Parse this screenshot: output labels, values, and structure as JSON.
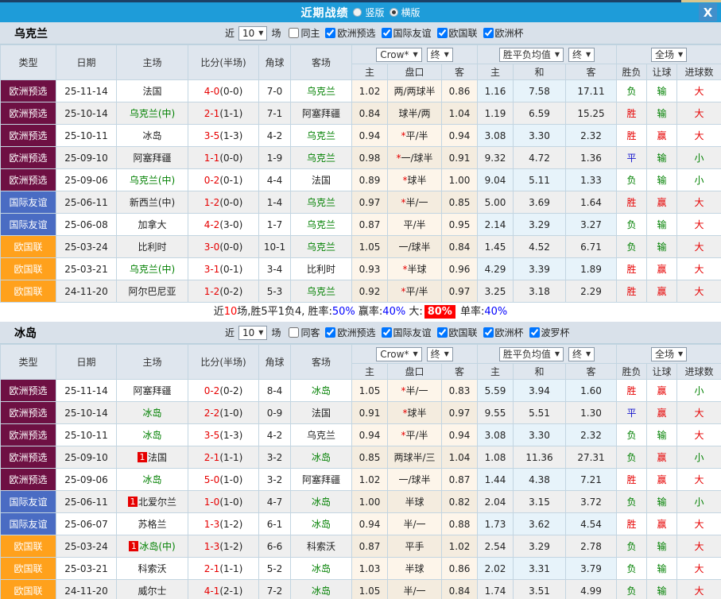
{
  "titlebar": {
    "title": "近期战绩",
    "radios": [
      {
        "label": "竖版",
        "selected": false
      },
      {
        "label": "横版",
        "selected": true
      }
    ],
    "close_label": "X"
  },
  "table_header": {
    "static_cols": [
      "类型",
      "日期",
      "主场",
      "比分(半场)",
      "角球",
      "客场"
    ],
    "group1_select": "Crow*",
    "group1_final": "终",
    "group2_select": "胜平负均值",
    "group2_final": "终",
    "group3_select": "全场",
    "sub_cols": [
      "主",
      "盘口",
      "客",
      "主",
      "和",
      "客",
      "胜负",
      "让球",
      "进球数"
    ]
  },
  "colors": {
    "accent_blue": "#1e9cd9",
    "type_euro_qualifier": "#6e1043",
    "type_friendly": "#4a6cc3",
    "type_nations_league": "#ffa11c",
    "win_red": "#e60000",
    "draw_blue": "#1515cc",
    "lose_green": "#008000",
    "percent_blue": "#0000ff"
  },
  "sections": [
    {
      "team": "乌克兰",
      "filter": {
        "near": "近",
        "count": "10",
        "games": "场",
        "same": {
          "label": "同主",
          "checked": false
        },
        "leagues": [
          {
            "label": "欧洲预选",
            "checked": true
          },
          {
            "label": "国际友谊",
            "checked": true
          },
          {
            "label": "欧国联",
            "checked": true
          },
          {
            "label": "欧洲杯",
            "checked": true
          }
        ]
      },
      "rows": [
        {
          "type": "欧洲预选",
          "date": "25-11-14",
          "home": "法国",
          "hg": false,
          "hb": false,
          "score": "4-0",
          "half": "(0-0)",
          "corner": "7-0",
          "away": "乌克兰",
          "ag": true,
          "o1": "1.02",
          "star": false,
          "pk": "两/两球半",
          "o2": "0.86",
          "a1": "1.16",
          "a2": "7.58",
          "a3": "17.11",
          "r1": "负",
          "c1": "g",
          "r2": "输",
          "c2": "g",
          "r3": "大",
          "c3": "r"
        },
        {
          "type": "欧洲预选",
          "date": "25-10-14",
          "home": "乌克兰(中)",
          "hg": true,
          "hb": false,
          "score": "2-1",
          "half": "(1-1)",
          "corner": "7-1",
          "away": "阿塞拜疆",
          "ag": false,
          "o1": "0.84",
          "star": false,
          "pk": "球半/两",
          "o2": "1.04",
          "a1": "1.19",
          "a2": "6.59",
          "a3": "15.25",
          "r1": "胜",
          "c1": "r",
          "r2": "输",
          "c2": "g",
          "r3": "大",
          "c3": "r"
        },
        {
          "type": "欧洲预选",
          "date": "25-10-11",
          "home": "冰岛",
          "hg": false,
          "hb": false,
          "score": "3-5",
          "half": "(1-3)",
          "corner": "4-2",
          "away": "乌克兰",
          "ag": true,
          "o1": "0.94",
          "star": true,
          "pk": "平/半",
          "o2": "0.94",
          "a1": "3.08",
          "a2": "3.30",
          "a3": "2.32",
          "r1": "胜",
          "c1": "r",
          "r2": "赢",
          "c2": "r",
          "r3": "大",
          "c3": "r"
        },
        {
          "type": "欧洲预选",
          "date": "25-09-10",
          "home": "阿塞拜疆",
          "hg": false,
          "hb": false,
          "score": "1-1",
          "half": "(0-0)",
          "corner": "1-9",
          "away": "乌克兰",
          "ag": true,
          "o1": "0.98",
          "star": true,
          "pk": "一/球半",
          "o2": "0.91",
          "a1": "9.32",
          "a2": "4.72",
          "a3": "1.36",
          "r1": "平",
          "c1": "b",
          "r2": "输",
          "c2": "g",
          "r3": "小",
          "c3": "g"
        },
        {
          "type": "欧洲预选",
          "date": "25-09-06",
          "home": "乌克兰(中)",
          "hg": true,
          "hb": false,
          "score": "0-2",
          "half": "(0-1)",
          "corner": "4-4",
          "away": "法国",
          "ag": false,
          "o1": "0.89",
          "star": true,
          "pk": "球半",
          "o2": "1.00",
          "a1": "9.04",
          "a2": "5.11",
          "a3": "1.33",
          "r1": "负",
          "c1": "g",
          "r2": "输",
          "c2": "g",
          "r3": "小",
          "c3": "g"
        },
        {
          "type": "国际友谊",
          "date": "25-06-11",
          "home": "新西兰(中)",
          "hg": false,
          "hb": false,
          "score": "1-2",
          "half": "(0-0)",
          "corner": "1-4",
          "away": "乌克兰",
          "ag": true,
          "o1": "0.97",
          "star": true,
          "pk": "半/一",
          "o2": "0.85",
          "a1": "5.00",
          "a2": "3.69",
          "a3": "1.64",
          "r1": "胜",
          "c1": "r",
          "r2": "赢",
          "c2": "r",
          "r3": "大",
          "c3": "r"
        },
        {
          "type": "国际友谊",
          "date": "25-06-08",
          "home": "加拿大",
          "hg": false,
          "hb": false,
          "score": "4-2",
          "half": "(3-0)",
          "corner": "1-7",
          "away": "乌克兰",
          "ag": true,
          "o1": "0.87",
          "star": false,
          "pk": "平/半",
          "o2": "0.95",
          "a1": "2.14",
          "a2": "3.29",
          "a3": "3.27",
          "r1": "负",
          "c1": "g",
          "r2": "输",
          "c2": "g",
          "r3": "大",
          "c3": "r"
        },
        {
          "type": "欧国联",
          "date": "25-03-24",
          "home": "比利时",
          "hg": false,
          "hb": false,
          "score": "3-0",
          "half": "(0-0)",
          "corner": "10-1",
          "away": "乌克兰",
          "ag": true,
          "o1": "1.05",
          "star": false,
          "pk": "一/球半",
          "o2": "0.84",
          "a1": "1.45",
          "a2": "4.52",
          "a3": "6.71",
          "r1": "负",
          "c1": "g",
          "r2": "输",
          "c2": "g",
          "r3": "大",
          "c3": "r"
        },
        {
          "type": "欧国联",
          "date": "25-03-21",
          "home": "乌克兰(中)",
          "hg": true,
          "hb": false,
          "score": "3-1",
          "half": "(0-1)",
          "corner": "3-4",
          "away": "比利时",
          "ag": false,
          "o1": "0.93",
          "star": true,
          "pk": "半球",
          "o2": "0.96",
          "a1": "4.29",
          "a2": "3.39",
          "a3": "1.89",
          "r1": "胜",
          "c1": "r",
          "r2": "赢",
          "c2": "r",
          "r3": "大",
          "c3": "r"
        },
        {
          "type": "欧国联",
          "date": "24-11-20",
          "home": "阿尔巴尼亚",
          "hg": false,
          "hb": false,
          "score": "1-2",
          "half": "(0-2)",
          "corner": "5-3",
          "away": "乌克兰",
          "ag": true,
          "o1": "0.92",
          "star": true,
          "pk": "平/半",
          "o2": "0.97",
          "a1": "3.25",
          "a2": "3.18",
          "a3": "2.29",
          "r1": "胜",
          "c1": "r",
          "r2": "赢",
          "c2": "r",
          "r3": "大",
          "c3": "r"
        }
      ],
      "summary": [
        {
          "t": "近"
        },
        {
          "t": "10",
          "c": "r"
        },
        {
          "t": "场,胜5平1负4, 胜率:"
        },
        {
          "t": "50%",
          "c": "b"
        },
        {
          "t": " 赢率:"
        },
        {
          "t": "40%",
          "c": "b"
        },
        {
          "t": " 大:"
        },
        {
          "t": "80%",
          "c": "hl"
        },
        {
          "t": " 单率:"
        },
        {
          "t": "40%",
          "c": "b"
        }
      ]
    },
    {
      "team": "冰岛",
      "filter": {
        "near": "近",
        "count": "10",
        "games": "场",
        "same": {
          "label": "同客",
          "checked": false
        },
        "leagues": [
          {
            "label": "欧洲预选",
            "checked": true
          },
          {
            "label": "国际友谊",
            "checked": true
          },
          {
            "label": "欧国联",
            "checked": true
          },
          {
            "label": "欧洲杯",
            "checked": true
          },
          {
            "label": "波罗杯",
            "checked": true
          }
        ]
      },
      "rows": [
        {
          "type": "欧洲预选",
          "date": "25-11-14",
          "home": "阿塞拜疆",
          "hg": false,
          "hb": false,
          "score": "0-2",
          "half": "(0-2)",
          "corner": "8-4",
          "away": "冰岛",
          "ag": true,
          "o1": "1.05",
          "star": true,
          "pk": "半/一",
          "o2": "0.83",
          "a1": "5.59",
          "a2": "3.94",
          "a3": "1.60",
          "r1": "胜",
          "c1": "r",
          "r2": "赢",
          "c2": "r",
          "r3": "小",
          "c3": "g"
        },
        {
          "type": "欧洲预选",
          "date": "25-10-14",
          "home": "冰岛",
          "hg": true,
          "hb": false,
          "score": "2-2",
          "half": "(1-0)",
          "corner": "0-9",
          "away": "法国",
          "ag": false,
          "o1": "0.91",
          "star": true,
          "pk": "球半",
          "o2": "0.97",
          "a1": "9.55",
          "a2": "5.51",
          "a3": "1.30",
          "r1": "平",
          "c1": "b",
          "r2": "赢",
          "c2": "r",
          "r3": "大",
          "c3": "r"
        },
        {
          "type": "欧洲预选",
          "date": "25-10-11",
          "home": "冰岛",
          "hg": true,
          "hb": false,
          "score": "3-5",
          "half": "(1-3)",
          "corner": "4-2",
          "away": "乌克兰",
          "ag": false,
          "o1": "0.94",
          "star": true,
          "pk": "平/半",
          "o2": "0.94",
          "a1": "3.08",
          "a2": "3.30",
          "a3": "2.32",
          "r1": "负",
          "c1": "g",
          "r2": "输",
          "c2": "g",
          "r3": "大",
          "c3": "r"
        },
        {
          "type": "欧洲预选",
          "date": "25-09-10",
          "home": "法国",
          "hg": false,
          "hb": true,
          "score": "2-1",
          "half": "(1-1)",
          "corner": "3-2",
          "away": "冰岛",
          "ag": true,
          "o1": "0.85",
          "star": false,
          "pk": "两球半/三",
          "o2": "1.04",
          "a1": "1.08",
          "a2": "11.36",
          "a3": "27.31",
          "r1": "负",
          "c1": "g",
          "r2": "赢",
          "c2": "r",
          "r3": "小",
          "c3": "g"
        },
        {
          "type": "欧洲预选",
          "date": "25-09-06",
          "home": "冰岛",
          "hg": true,
          "hb": false,
          "score": "5-0",
          "half": "(1-0)",
          "corner": "3-2",
          "away": "阿塞拜疆",
          "ag": false,
          "o1": "1.02",
          "star": false,
          "pk": "一/球半",
          "o2": "0.87",
          "a1": "1.44",
          "a2": "4.38",
          "a3": "7.21",
          "r1": "胜",
          "c1": "r",
          "r2": "赢",
          "c2": "r",
          "r3": "大",
          "c3": "r"
        },
        {
          "type": "国际友谊",
          "date": "25-06-11",
          "home": "北爱尔兰",
          "hg": false,
          "hb": true,
          "score": "1-0",
          "half": "(1-0)",
          "corner": "4-7",
          "away": "冰岛",
          "ag": true,
          "o1": "1.00",
          "star": false,
          "pk": "半球",
          "o2": "0.82",
          "a1": "2.04",
          "a2": "3.15",
          "a3": "3.72",
          "r1": "负",
          "c1": "g",
          "r2": "输",
          "c2": "g",
          "r3": "小",
          "c3": "g"
        },
        {
          "type": "国际友谊",
          "date": "25-06-07",
          "home": "苏格兰",
          "hg": false,
          "hb": false,
          "score": "1-3",
          "half": "(1-2)",
          "corner": "6-1",
          "away": "冰岛",
          "ag": true,
          "o1": "0.94",
          "star": false,
          "pk": "半/一",
          "o2": "0.88",
          "a1": "1.73",
          "a2": "3.62",
          "a3": "4.54",
          "r1": "胜",
          "c1": "r",
          "r2": "赢",
          "c2": "r",
          "r3": "大",
          "c3": "r"
        },
        {
          "type": "欧国联",
          "date": "25-03-24",
          "home": "冰岛(中)",
          "hg": true,
          "hb": true,
          "score": "1-3",
          "half": "(1-2)",
          "corner": "6-6",
          "away": "科索沃",
          "ag": false,
          "o1": "0.87",
          "star": false,
          "pk": "平手",
          "o2": "1.02",
          "a1": "2.54",
          "a2": "3.29",
          "a3": "2.78",
          "r1": "负",
          "c1": "g",
          "r2": "输",
          "c2": "g",
          "r3": "大",
          "c3": "r"
        },
        {
          "type": "欧国联",
          "date": "25-03-21",
          "home": "科索沃",
          "hg": false,
          "hb": false,
          "score": "2-1",
          "half": "(1-1)",
          "corner": "5-2",
          "away": "冰岛",
          "ag": true,
          "o1": "1.03",
          "star": false,
          "pk": "半球",
          "o2": "0.86",
          "a1": "2.02",
          "a2": "3.31",
          "a3": "3.79",
          "r1": "负",
          "c1": "g",
          "r2": "输",
          "c2": "g",
          "r3": "大",
          "c3": "r"
        },
        {
          "type": "欧国联",
          "date": "24-11-20",
          "home": "威尔士",
          "hg": false,
          "hb": false,
          "score": "4-1",
          "half": "(2-1)",
          "corner": "7-2",
          "away": "冰岛",
          "ag": true,
          "o1": "1.05",
          "star": false,
          "pk": "半/一",
          "o2": "0.84",
          "a1": "1.74",
          "a2": "3.51",
          "a3": "4.99",
          "r1": "负",
          "c1": "g",
          "r2": "输",
          "c2": "g",
          "r3": "大",
          "c3": "r"
        }
      ],
      "summary": []
    }
  ]
}
